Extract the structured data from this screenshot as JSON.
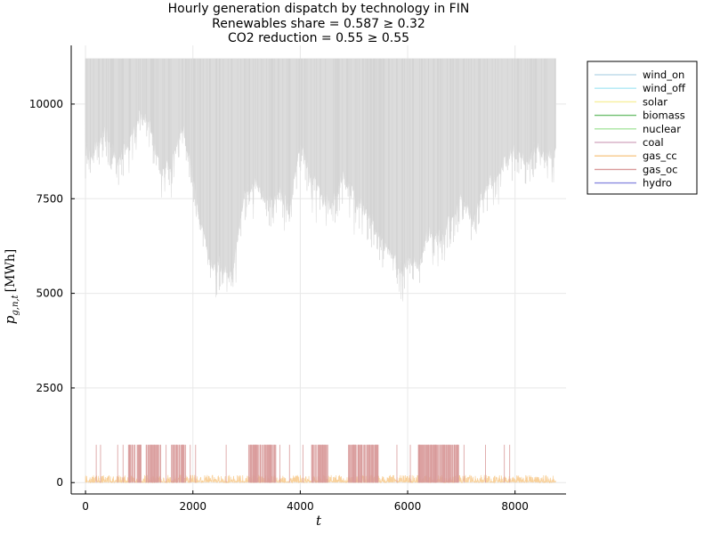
{
  "chart_data": {
    "type": "line",
    "title": [
      "Hourly generation dispatch by technology in FIN",
      "Renewables share = 0.587 ≥ 0.32",
      "CO2 reduction = 0.55 ≥ 0.55"
    ],
    "xlabel": "t",
    "ylabel_main": "p",
    "ylabel_sub": "g,n,t",
    "ylabel_unit": "[MWh]",
    "xlim": [
      -250,
      8950
    ],
    "ylim": [
      -300,
      11550
    ],
    "x_ticks": [
      0,
      2000,
      4000,
      6000,
      8000
    ],
    "y_ticks": [
      0,
      2500,
      5000,
      7500,
      10000
    ],
    "x_tick_labels": [
      "0",
      "2000",
      "4000",
      "6000",
      "8000"
    ],
    "y_tick_labels": [
      "0",
      "2500",
      "5000",
      "7500",
      "10000"
    ],
    "grid": true,
    "legend_position": "top-right outside",
    "hours": 8760,
    "series": [
      {
        "name": "wind_on",
        "color": "#bfdcea"
      },
      {
        "name": "wind_off",
        "color": "#aee8f5"
      },
      {
        "name": "solar",
        "color": "#f7ef9e"
      },
      {
        "name": "biomass",
        "color": "#6fbf6f"
      },
      {
        "name": "nuclear",
        "color": "#a8e6a0"
      },
      {
        "name": "coal",
        "color": "#d8b4c8"
      },
      {
        "name": "gas_cc",
        "color": "#f7c888"
      },
      {
        "name": "gas_oc",
        "color": "#d99a9a"
      },
      {
        "name": "hydro",
        "color": "#8a8ae0"
      }
    ],
    "hydro_envelope": {
      "series": "hydro",
      "display_color": "#dcdcdc",
      "max": 11200,
      "x": [
        0,
        100,
        200,
        400,
        600,
        800,
        1000,
        1200,
        1400,
        1600,
        1800,
        2000,
        2100,
        2200,
        2300,
        2400,
        2500,
        2600,
        2700,
        2800,
        2900,
        3000,
        3200,
        3400,
        3600,
        3800,
        4000,
        4200,
        4400,
        4600,
        4800,
        5000,
        5200,
        5400,
        5600,
        5800,
        5900,
        6000,
        6100,
        6200,
        6400,
        6600,
        6800,
        7000,
        7200,
        7400,
        7600,
        7800,
        8000,
        8200,
        8400,
        8600,
        8760
      ],
      "y": [
        8800,
        8600,
        9000,
        9300,
        8600,
        9000,
        9700,
        9600,
        8300,
        8500,
        9500,
        8200,
        7200,
        6700,
        6000,
        5700,
        5800,
        5600,
        5500,
        6200,
        7200,
        7800,
        8000,
        7400,
        7700,
        7300,
        9000,
        8200,
        7600,
        7300,
        8200,
        7600,
        7300,
        6800,
        6300,
        6000,
        5600,
        5900,
        6000,
        5800,
        6700,
        6500,
        6900,
        7600,
        7000,
        7700,
        8100,
        8500,
        8800,
        8600,
        8900,
        8700,
        8800
      ]
    },
    "gas_oc_spikes": {
      "series": "gas_oc",
      "height": 1000,
      "dense_ranges": [
        [
          800,
          1050
        ],
        [
          1130,
          1400
        ],
        [
          1600,
          1870
        ],
        [
          3040,
          3550
        ],
        [
          4200,
          4520
        ],
        [
          4880,
          5450
        ],
        [
          6200,
          6950
        ]
      ],
      "sparse_x": [
        200,
        280,
        600,
        700,
        1500,
        1950,
        2050,
        2620,
        3250,
        3620,
        3800,
        4050,
        5800,
        6050,
        7050,
        7450,
        7800,
        7900
      ]
    },
    "gas_cc_noise_max": 200
  }
}
